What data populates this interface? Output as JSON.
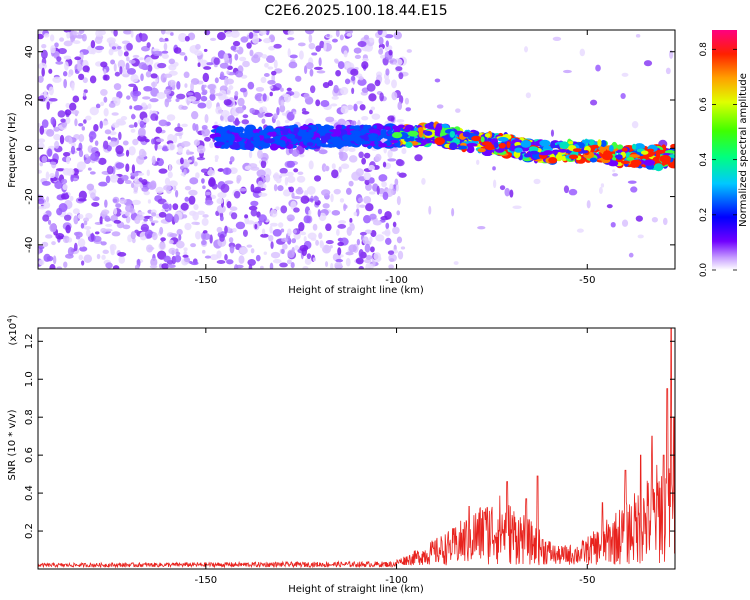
{
  "title": "C2E6.2025.100.18.44.E15",
  "chart_data": [
    {
      "type": "heatmap",
      "xlabel": "Height of straight line (km)",
      "ylabel": "Frequency (Hz)",
      "xlim": [
        -194,
        -27
      ],
      "ylim": [
        -50,
        49
      ],
      "x_ticks": [
        -150,
        -100,
        -50
      ],
      "y_ticks": [
        -40,
        -20,
        0,
        20,
        40
      ],
      "colorbar": {
        "label": "Normalized spectral amplitude",
        "range": [
          0,
          0.87
        ],
        "ticks": [
          0.0,
          0.2,
          0.4,
          0.6,
          0.8
        ]
      },
      "ridge": [
        {
          "x": -145,
          "y": 5
        },
        {
          "x": -135,
          "y": 4
        },
        {
          "x": -120,
          "y": 5
        },
        {
          "x": -100,
          "y": 5
        },
        {
          "x": -90,
          "y": 6
        },
        {
          "x": -80,
          "y": 3
        },
        {
          "x": -70,
          "y": 1
        },
        {
          "x": -60,
          "y": -2
        },
        {
          "x": -50,
          "y": -1
        },
        {
          "x": -40,
          "y": -3
        },
        {
          "x": -30,
          "y": -4
        },
        {
          "x": -27,
          "y": -3
        }
      ]
    },
    {
      "type": "line",
      "xlabel": "Height of straight line (km)",
      "ylabel": "SNR (10 * v/v)",
      "multiplier": "(x10",
      "multiplier_exp": "4",
      "xlim": [
        -194,
        -27
      ],
      "ylim": [
        0,
        1.27
      ],
      "x_ticks": [
        -150,
        -100,
        -50
      ],
      "y_ticks": [
        0.2,
        0.4,
        0.6,
        0.8,
        1.0,
        1.2
      ],
      "color": "#e8231e",
      "envelope": [
        {
          "x": -194,
          "y": 0.02
        },
        {
          "x": -150,
          "y": 0.025
        },
        {
          "x": -100,
          "y": 0.03
        },
        {
          "x": -95,
          "y": 0.08
        },
        {
          "x": -85,
          "y": 0.2
        },
        {
          "x": -80,
          "y": 0.3
        },
        {
          "x": -73,
          "y": 0.38
        },
        {
          "x": -68,
          "y": 0.3
        },
        {
          "x": -63,
          "y": 0.2
        },
        {
          "x": -58,
          "y": 0.1
        },
        {
          "x": -52,
          "y": 0.12
        },
        {
          "x": -47,
          "y": 0.2
        },
        {
          "x": -42,
          "y": 0.3
        },
        {
          "x": -37,
          "y": 0.4
        },
        {
          "x": -33,
          "y": 0.5
        },
        {
          "x": -30,
          "y": 0.6
        },
        {
          "x": -27,
          "y": 0.45
        }
      ],
      "peaks": [
        {
          "x": -81,
          "y": 0.33
        },
        {
          "x": -77,
          "y": 0.3
        },
        {
          "x": -71,
          "y": 0.46
        },
        {
          "x": -66,
          "y": 0.37
        },
        {
          "x": -63,
          "y": 0.49
        },
        {
          "x": -46,
          "y": 0.35
        },
        {
          "x": -40,
          "y": 0.52
        },
        {
          "x": -36,
          "y": 0.6
        },
        {
          "x": -33,
          "y": 0.7
        },
        {
          "x": -30,
          "y": 0.6
        },
        {
          "x": -29,
          "y": 0.95
        },
        {
          "x": -28,
          "y": 1.27
        },
        {
          "x": -27.3,
          "y": 0.8
        }
      ]
    }
  ]
}
